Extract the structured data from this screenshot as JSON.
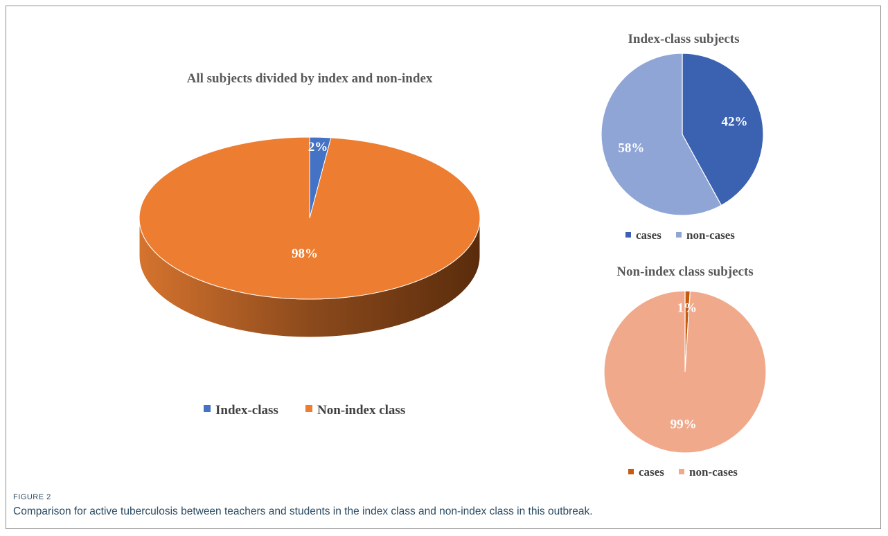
{
  "figure": {
    "label": "FIGURE 2",
    "caption": "Comparison for active tuberculosis between teachers and students in the index class and non-index class in this outbreak."
  },
  "chart_data": [
    {
      "type": "pie",
      "variant": "3d",
      "title": "All subjects divided by index and non-index",
      "categories": [
        "Index-class",
        "Non-index class"
      ],
      "values": [
        2,
        98
      ],
      "labels": [
        "2%",
        "98%"
      ],
      "colors": [
        "#4472c4",
        "#ed7d31"
      ],
      "legend": "bottom"
    },
    {
      "type": "pie",
      "title": "Index-class subjects",
      "categories": [
        "cases",
        "non-cases"
      ],
      "values": [
        42,
        58
      ],
      "labels": [
        "42%",
        "58%"
      ],
      "colors": [
        "#3a62b0",
        "#8fa5d6"
      ],
      "legend": "bottom"
    },
    {
      "type": "pie",
      "title": "Non-index class subjects",
      "categories": [
        "cases",
        "non-cases"
      ],
      "values": [
        1,
        99
      ],
      "labels": [
        "1%",
        "99%"
      ],
      "colors": [
        "#c55a11",
        "#f0a98a"
      ],
      "legend": "bottom"
    }
  ]
}
